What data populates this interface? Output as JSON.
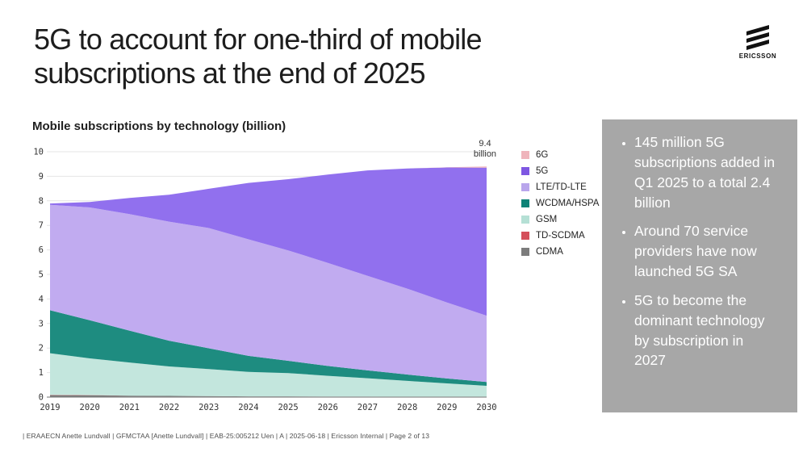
{
  "slide": {
    "title": "5G to account for one-third of mobile subscriptions at the end of 2025",
    "logo_text": "ERICSSON",
    "footer": "| ERAAECN Anette Lundvall | GFMCTAA [Anette Lundvall] | EAB-25:005212 Uen | A | 2025-06-18 | Ericsson Internal | Page 2 of 13"
  },
  "sidebar": {
    "background": "#a7a7a7",
    "bullets": [
      "145 million 5G subscriptions added in Q1 2025 to a total 2.4 billion",
      "Around 70 service providers have now launched 5G SA",
      "5G to become the dominant technology by subscription in 2027"
    ]
  },
  "chart_data": {
    "type": "area",
    "stacked": true,
    "title": "Mobile subscriptions by technology (billion)",
    "xlabel": "",
    "ylabel": "",
    "x": [
      2019,
      2020,
      2021,
      2022,
      2023,
      2024,
      2025,
      2026,
      2027,
      2028,
      2029,
      2030
    ],
    "ylim": [
      0,
      10
    ],
    "yticks": [
      0,
      1,
      2,
      3,
      4,
      5,
      6,
      7,
      8,
      9,
      10
    ],
    "grid": true,
    "legend_position": "right",
    "series": [
      {
        "name": "CDMA",
        "color": "#6f6f6f",
        "values": [
          0.08,
          0.07,
          0.06,
          0.05,
          0.04,
          0.03,
          0.03,
          0.02,
          0.02,
          0.01,
          0.01,
          0.01
        ]
      },
      {
        "name": "TD-SCDMA",
        "color": "#d44f5b",
        "values": [
          0.01,
          0.01,
          0.0,
          0.0,
          0.0,
          0.0,
          0.0,
          0.0,
          0.0,
          0.0,
          0.0,
          0.0
        ]
      },
      {
        "name": "GSM",
        "color": "#c3e6dd",
        "values": [
          1.7,
          1.5,
          1.35,
          1.2,
          1.1,
          1.0,
          0.95,
          0.85,
          0.75,
          0.65,
          0.55,
          0.45
        ]
      },
      {
        "name": "WCDMA/HSPA",
        "color": "#1e8c80",
        "values": [
          1.75,
          1.55,
          1.3,
          1.05,
          0.85,
          0.65,
          0.5,
          0.4,
          0.32,
          0.26,
          0.2,
          0.16
        ]
      },
      {
        "name": "LTE/TD-LTE",
        "color": "#c1abf0",
        "values": [
          4.3,
          4.6,
          4.75,
          4.85,
          4.9,
          4.75,
          4.5,
          4.2,
          3.85,
          3.5,
          3.1,
          2.7
        ]
      },
      {
        "name": "5G",
        "color": "#9170ee",
        "values": [
          0.05,
          0.22,
          0.66,
          1.1,
          1.6,
          2.3,
          2.9,
          3.6,
          4.3,
          4.9,
          5.5,
          6.03
        ]
      },
      {
        "name": "6G",
        "color": "#efb4bb",
        "values": [
          0.0,
          0.0,
          0.0,
          0.0,
          0.0,
          0.0,
          0.0,
          0.0,
          0.0,
          0.0,
          0.01,
          0.05
        ]
      }
    ],
    "legend": [
      {
        "label": "6G",
        "color": "#efb4bb"
      },
      {
        "label": "5G",
        "color": "#7e57e2"
      },
      {
        "label": "LTE/TD-LTE",
        "color": "#b9a6ec"
      },
      {
        "label": "WCDMA/HSPA",
        "color": "#0e8377"
      },
      {
        "label": "GSM",
        "color": "#b5e0d5"
      },
      {
        "label": "TD-SCDMA",
        "color": "#d44f5b"
      },
      {
        "label": "CDMA",
        "color": "#7c7c7c"
      }
    ],
    "annotation": {
      "x": 2030,
      "value": "9.4",
      "unit": "billion"
    }
  }
}
